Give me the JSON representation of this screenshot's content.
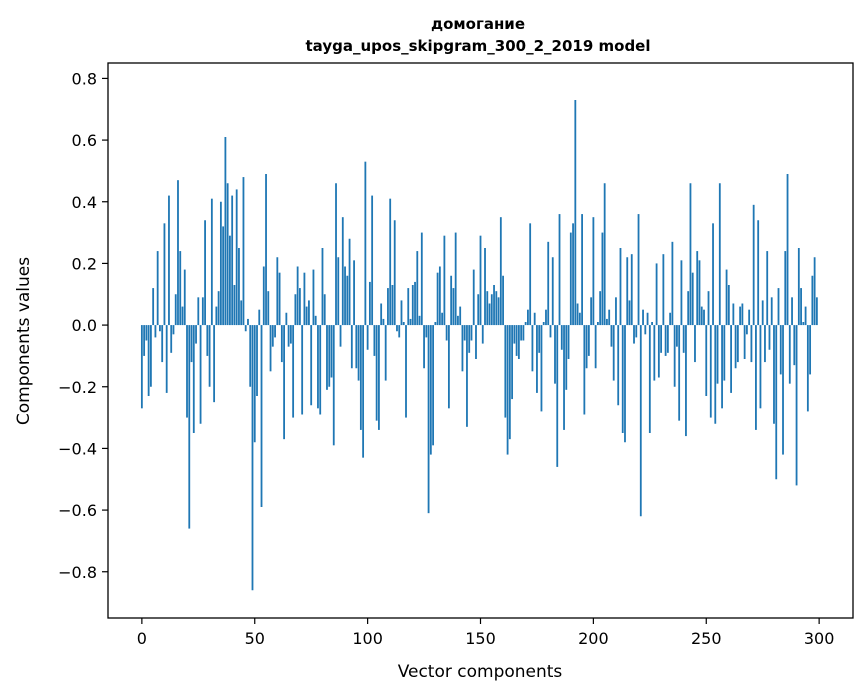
{
  "chart_data": {
    "type": "bar",
    "title": "домогание",
    "subtitle": "tayga_upos_skipgram_300_2_2019 model",
    "xlabel": "Vector components",
    "ylabel": "Components values",
    "xlim": [
      -15,
      315
    ],
    "ylim": [
      -0.95,
      0.85
    ],
    "xticks": [
      0,
      50,
      100,
      150,
      200,
      250,
      300
    ],
    "yticks": [
      -0.8,
      -0.6,
      -0.4,
      -0.2,
      0.0,
      0.2,
      0.4,
      0.6,
      0.8
    ],
    "ytick_labels": [
      "−0.8",
      "−0.6",
      "−0.4",
      "−0.2",
      "0.0",
      "0.2",
      "0.4",
      "0.6",
      "0.8"
    ],
    "bar_color": "#1f77b4",
    "grid": false,
    "values": [
      -0.27,
      -0.1,
      -0.05,
      -0.23,
      -0.2,
      0.12,
      -0.04,
      0.24,
      -0.02,
      -0.12,
      0.33,
      -0.22,
      0.42,
      -0.09,
      -0.03,
      0.1,
      0.47,
      0.24,
      0.06,
      0.18,
      -0.3,
      -0.66,
      -0.12,
      -0.35,
      -0.06,
      0.09,
      -0.32,
      0.09,
      0.34,
      -0.1,
      -0.2,
      0.41,
      -0.25,
      0.06,
      0.11,
      0.4,
      0.32,
      0.61,
      0.46,
      0.29,
      0.42,
      0.13,
      0.44,
      0.25,
      0.08,
      0.48,
      -0.02,
      0.02,
      -0.2,
      -0.86,
      -0.38,
      -0.23,
      0.05,
      -0.59,
      0.19,
      0.49,
      0.11,
      -0.15,
      -0.07,
      -0.04,
      0.22,
      0.17,
      -0.12,
      -0.37,
      0.04,
      -0.07,
      -0.06,
      -0.3,
      0.1,
      0.19,
      0.12,
      -0.29,
      0.17,
      0.06,
      0.08,
      -0.26,
      0.18,
      0.03,
      -0.27,
      -0.29,
      0.25,
      0.1,
      -0.21,
      -0.2,
      -0.17,
      -0.39,
      0.46,
      0.22,
      -0.07,
      0.35,
      0.19,
      0.16,
      0.28,
      -0.14,
      0.21,
      -0.14,
      -0.18,
      -0.34,
      -0.43,
      0.53,
      -0.08,
      0.14,
      0.42,
      -0.1,
      -0.31,
      -0.34,
      0.07,
      0.02,
      -0.18,
      0.12,
      0.41,
      0.13,
      0.34,
      -0.02,
      -0.04,
      0.08,
      0.01,
      -0.3,
      0.12,
      0.02,
      0.13,
      0.14,
      0.24,
      0.03,
      0.3,
      -0.14,
      -0.04,
      -0.61,
      -0.42,
      -0.39,
      0.01,
      0.17,
      0.19,
      0.04,
      0.29,
      -0.05,
      -0.27,
      0.16,
      0.12,
      0.3,
      0.03,
      0.06,
      -0.15,
      -0.05,
      -0.33,
      -0.09,
      -0.05,
      0.18,
      -0.11,
      0.1,
      0.29,
      -0.06,
      0.25,
      0.11,
      0.07,
      0.1,
      0.13,
      0.11,
      0.09,
      0.35,
      0.16,
      -0.3,
      -0.42,
      -0.37,
      -0.24,
      -0.06,
      -0.1,
      -0.11,
      -0.05,
      -0.05,
      0.01,
      0.05,
      0.33,
      -0.15,
      0.04,
      -0.22,
      -0.09,
      -0.28,
      0.01,
      0.05,
      0.27,
      -0.04,
      0.22,
      -0.19,
      -0.46,
      0.36,
      -0.08,
      -0.34,
      -0.21,
      -0.11,
      0.3,
      0.33,
      0.73,
      0.07,
      0.04,
      0.36,
      -0.29,
      -0.14,
      -0.1,
      0.09,
      0.35,
      -0.14,
      0.01,
      0.11,
      0.3,
      0.46,
      0.02,
      0.05,
      -0.07,
      -0.18,
      0.09,
      -0.26,
      0.25,
      -0.35,
      -0.38,
      0.22,
      0.08,
      0.23,
      -0.06,
      -0.04,
      0.36,
      -0.62,
      0.05,
      -0.03,
      0.04,
      -0.35,
      0.01,
      -0.18,
      0.2,
      -0.17,
      -0.09,
      0.23,
      -0.1,
      -0.09,
      0.04,
      0.27,
      -0.2,
      -0.07,
      -0.31,
      0.21,
      -0.09,
      -0.36,
      0.11,
      0.46,
      0.17,
      -0.12,
      0.24,
      0.21,
      0.06,
      0.05,
      -0.23,
      0.11,
      -0.3,
      0.33,
      -0.32,
      -0.19,
      0.46,
      -0.27,
      -0.18,
      0.18,
      0.13,
      -0.22,
      0.07,
      -0.14,
      -0.12,
      0.06,
      0.07,
      -0.11,
      -0.03,
      0.05,
      -0.12,
      0.39,
      -0.34,
      0.34,
      -0.27,
      0.08,
      -0.12,
      0.24,
      -0.08,
      0.09,
      -0.32,
      -0.5,
      0.12,
      -0.16,
      -0.42,
      0.24,
      0.49,
      -0.19,
      0.09,
      -0.13,
      -0.52,
      0.25,
      0.12,
      0.01,
      0.06,
      -0.28,
      -0.16,
      0.16,
      0.22,
      0.09
    ]
  }
}
